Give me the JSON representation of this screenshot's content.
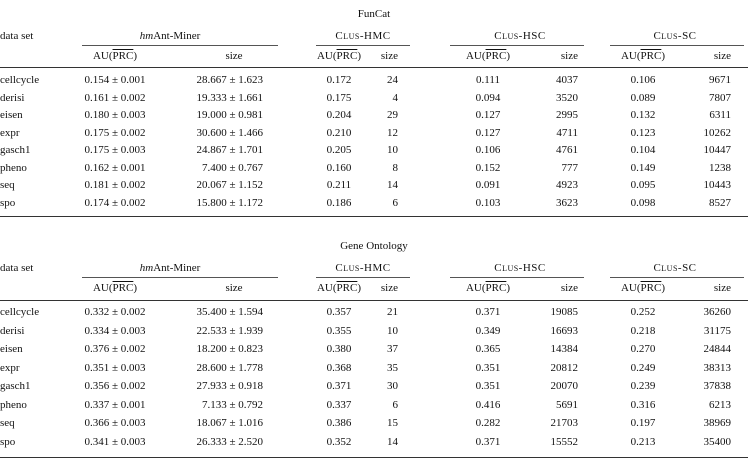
{
  "tables": [
    {
      "title": "FunCat",
      "col_dataset": "data set",
      "methods": [
        {
          "name_em": "hm",
          "name_rest": "Ant-Miner",
          "m1": "AU(",
          "m2": "PRC",
          "m3": ")",
          "size": "size"
        },
        {
          "name_em": "",
          "name_rest": "Clus-HMC",
          "m1": "AU(",
          "m2": "PRC",
          "m3": ")",
          "size": "size"
        },
        {
          "name_em": "",
          "name_rest": "Clus-HSC",
          "m1": "AU(",
          "m2": "PRC",
          "m3": ")",
          "size": "size"
        },
        {
          "name_em": "",
          "name_rest": "Clus-SC",
          "m1": "AU(",
          "m2": "PRC",
          "m3": ")",
          "size": "size"
        }
      ],
      "rows": [
        [
          "cellcycle",
          "0.154 ± 0.001",
          "28.667 ± 1.623",
          "0.172",
          "24",
          "0.111",
          "4037",
          "0.106",
          "9671"
        ],
        [
          "derisi",
          "0.161 ± 0.002",
          "19.333 ± 1.661",
          "0.175",
          "4",
          "0.094",
          "3520",
          "0.089",
          "7807"
        ],
        [
          "eisen",
          "0.180 ± 0.003",
          "19.000 ± 0.981",
          "0.204",
          "29",
          "0.127",
          "2995",
          "0.132",
          "6311"
        ],
        [
          "expr",
          "0.175 ± 0.002",
          "30.600 ± 1.466",
          "0.210",
          "12",
          "0.127",
          "4711",
          "0.123",
          "10262"
        ],
        [
          "gasch1",
          "0.175 ± 0.003",
          "24.867 ± 1.701",
          "0.205",
          "10",
          "0.106",
          "4761",
          "0.104",
          "10447"
        ],
        [
          "pheno",
          "0.162 ± 0.001",
          "7.400 ± 0.767",
          "0.160",
          "8",
          "0.152",
          "777",
          "0.149",
          "1238"
        ],
        [
          "seq",
          "0.181 ± 0.002",
          "20.067 ± 1.152",
          "0.211",
          "14",
          "0.091",
          "4923",
          "0.095",
          "10443"
        ],
        [
          "spo",
          "0.174 ± 0.002",
          "15.800 ± 1.172",
          "0.186",
          "6",
          "0.103",
          "3623",
          "0.098",
          "8527"
        ]
      ]
    },
    {
      "title": "Gene Ontology",
      "col_dataset": "data set",
      "methods": [
        {
          "name_em": "hm",
          "name_rest": "Ant-Miner",
          "m1": "AU(",
          "m2": "PRC",
          "m3": ")",
          "size": "size"
        },
        {
          "name_em": "",
          "name_rest": "Clus-HMC",
          "m1": "AU(",
          "m2": "PRC",
          "m3": ")",
          "size": "size"
        },
        {
          "name_em": "",
          "name_rest": "Clus-HSC",
          "m1": "AU(",
          "m2": "PRC",
          "m3": ")",
          "size": "size"
        },
        {
          "name_em": "",
          "name_rest": "Clus-SC",
          "m1": "AU(",
          "m2": "PRC",
          "m3": ")",
          "size": "size"
        }
      ],
      "rows": [
        [
          "cellcycle",
          "0.332 ± 0.002",
          "35.400 ± 1.594",
          "0.357",
          "21",
          "0.371",
          "19085",
          "0.252",
          "36260"
        ],
        [
          "derisi",
          "0.334 ± 0.003",
          "22.533 ± 1.939",
          "0.355",
          "10",
          "0.349",
          "16693",
          "0.218",
          "31175"
        ],
        [
          "eisen",
          "0.376 ± 0.002",
          "18.200 ± 0.823",
          "0.380",
          "37",
          "0.365",
          "14384",
          "0.270",
          "24844"
        ],
        [
          "expr",
          "0.351 ± 0.003",
          "28.600 ± 1.778",
          "0.368",
          "35",
          "0.351",
          "20812",
          "0.249",
          "38313"
        ],
        [
          "gasch1",
          "0.356 ± 0.002",
          "27.933 ± 0.918",
          "0.371",
          "30",
          "0.351",
          "20070",
          "0.239",
          "37838"
        ],
        [
          "pheno",
          "0.337 ± 0.001",
          "7.133 ± 0.792",
          "0.337",
          "6",
          "0.416",
          "5691",
          "0.316",
          "6213"
        ],
        [
          "seq",
          "0.366 ± 0.003",
          "18.067 ± 1.016",
          "0.386",
          "15",
          "0.282",
          "21703",
          "0.197",
          "38969"
        ],
        [
          "spo",
          "0.341 ± 0.003",
          "26.333 ± 2.520",
          "0.352",
          "14",
          "0.371",
          "15552",
          "0.213",
          "35400"
        ]
      ]
    }
  ]
}
